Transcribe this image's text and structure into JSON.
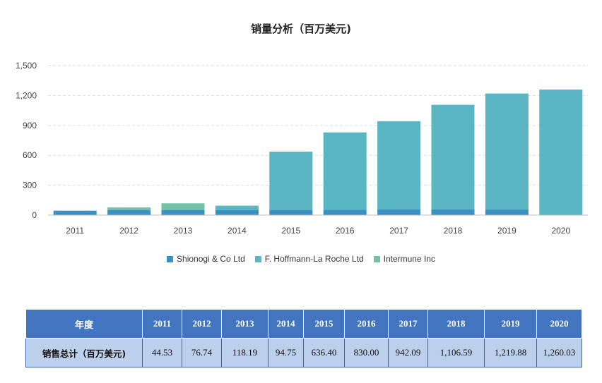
{
  "chart_data": {
    "type": "bar",
    "stacked": true,
    "title": "销量分析（百万美元)",
    "categories": [
      "2011",
      "2012",
      "2013",
      "2014",
      "2015",
      "2016",
      "2017",
      "2018",
      "2019",
      "2020"
    ],
    "series": [
      {
        "name": "Shionogi & Co Ltd",
        "color": "#3b8fc2",
        "values": [
          44.53,
          52,
          52,
          50,
          52,
          55,
          57,
          58,
          56,
          0
        ]
      },
      {
        "name": "F. Hoffmann-La Roche Ltd",
        "color": "#5ab5c3",
        "values": [
          0,
          0,
          0,
          44.75,
          584.4,
          775.0,
          885.09,
          1048.59,
          1163.88,
          1260.03
        ]
      },
      {
        "name": "Intermune Inc",
        "color": "#72c0a6",
        "values": [
          0,
          24.74,
          66.19,
          0,
          0,
          0,
          0,
          0,
          0,
          0
        ]
      }
    ],
    "ylim": [
      0,
      1500
    ],
    "yticks": [
      0,
      300,
      600,
      900,
      1200,
      1500
    ],
    "ytick_labels": [
      "0",
      "300",
      "600",
      "900",
      "1,200",
      "1,500"
    ],
    "grid": true,
    "legend_position": "bottom"
  },
  "table": {
    "header_label": "年度",
    "years": [
      "2011",
      "2012",
      "2013",
      "2014",
      "2015",
      "2016",
      "2017",
      "2018",
      "2019",
      "2020"
    ],
    "row_label": "销售总计（百万美元)",
    "totals": [
      "44.53",
      "76.74",
      "118.19",
      "94.75",
      "636.40",
      "830.00",
      "942.09",
      "1,106.59",
      "1,219.88",
      "1,260.03"
    ]
  }
}
